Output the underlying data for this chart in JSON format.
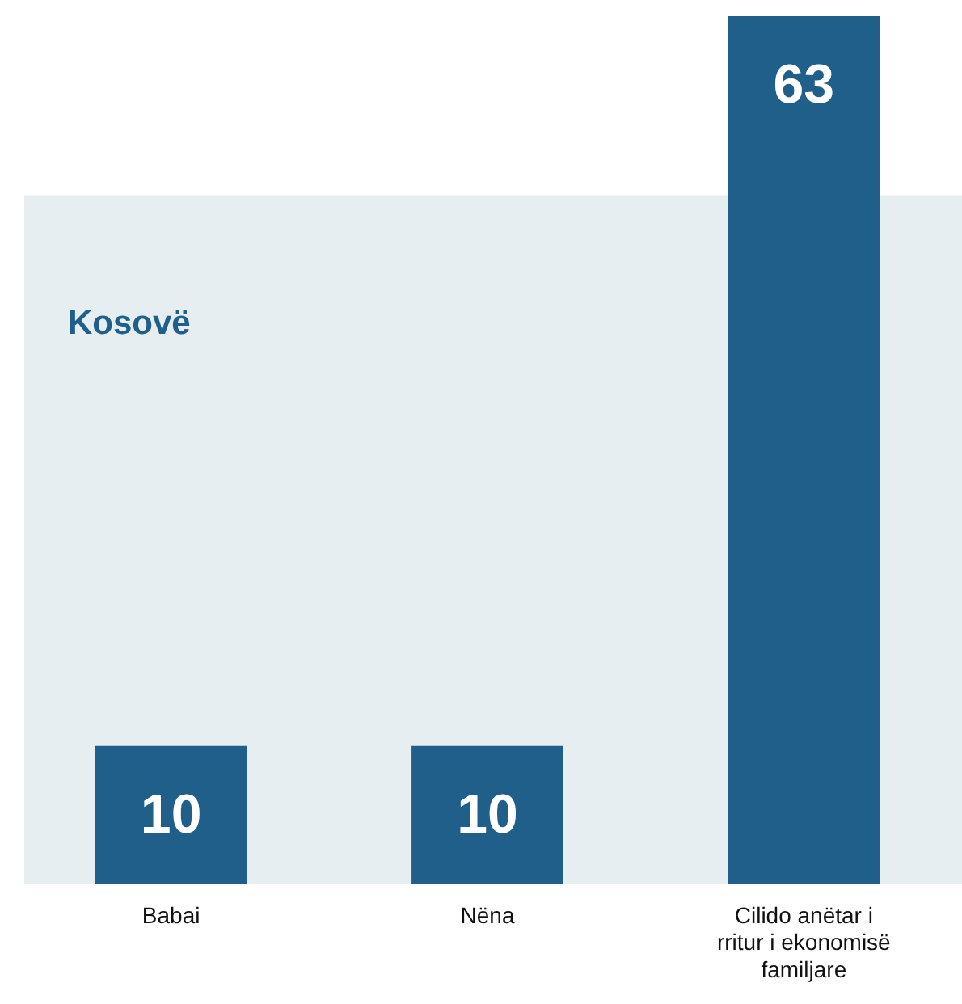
{
  "chart_data": {
    "type": "bar",
    "categories": [
      "Babai",
      "Nëna",
      "Cilido anëtar i rritur i ekonomisë familjare"
    ],
    "values": [
      10,
      10,
      63
    ],
    "data_labels": true,
    "color": "#1f5f8a",
    "bands": [
      {
        "axis": "y",
        "from": 0,
        "to": 50,
        "label": "Kosovë",
        "color": "#e6eef2"
      }
    ],
    "grid": false,
    "legend": false
  }
}
